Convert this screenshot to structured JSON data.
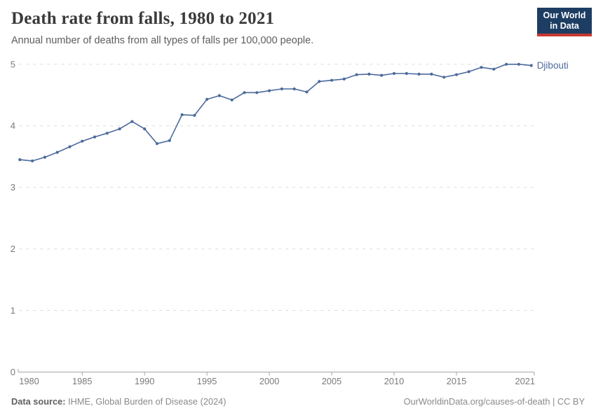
{
  "header": {
    "title": "Death rate from falls, 1980 to 2021",
    "subtitle": "Annual number of deaths from all types of falls per 100,000 people.",
    "logo": {
      "line1": "Our World",
      "line2": "in Data",
      "bg_color": "#1d3d63",
      "accent_color": "#c9382e",
      "text_color": "#ffffff"
    }
  },
  "chart_data": {
    "type": "line",
    "title": "Death rate from falls, 1980 to 2021",
    "subtitle": "Annual number of deaths from all types of falls per 100,000 people.",
    "xlim": [
      1980,
      2021
    ],
    "ylim": [
      0,
      5
    ],
    "x_ticks": [
      1980,
      1985,
      1990,
      1995,
      2000,
      2005,
      2010,
      2015,
      2021
    ],
    "y_ticks": [
      0,
      1,
      2,
      3,
      4,
      5
    ],
    "grid": "horizontal-dashed",
    "legend_position": "end-of-line-label",
    "styles": {
      "line_color": "#4C6A9C",
      "grid_color": "#dcdcdc",
      "axis_color": "#a5a5a5",
      "tick_label_color": "#7a7a7a"
    },
    "series": [
      {
        "name": "Djibouti",
        "color": "#4C6A9C",
        "x": [
          1980,
          1981,
          1982,
          1983,
          1984,
          1985,
          1986,
          1987,
          1988,
          1989,
          1990,
          1991,
          1992,
          1993,
          1994,
          1995,
          1996,
          1997,
          1998,
          1999,
          2000,
          2001,
          2002,
          2003,
          2004,
          2005,
          2006,
          2007,
          2008,
          2009,
          2010,
          2011,
          2012,
          2013,
          2014,
          2015,
          2016,
          2017,
          2018,
          2019,
          2020,
          2021
        ],
        "values": [
          3.45,
          3.43,
          3.49,
          3.57,
          3.66,
          3.75,
          3.82,
          3.88,
          3.95,
          4.07,
          3.95,
          3.71,
          3.76,
          4.18,
          4.17,
          4.43,
          4.49,
          4.42,
          4.54,
          4.54,
          4.57,
          4.6,
          4.6,
          4.55,
          4.72,
          4.74,
          4.76,
          4.83,
          4.84,
          4.82,
          4.85,
          4.85,
          4.84,
          4.84,
          4.79,
          4.83,
          4.88,
          4.95,
          4.92,
          5.0,
          5.0,
          4.98
        ]
      }
    ]
  },
  "footer": {
    "datasource_label": "Data source:",
    "datasource_value": " IHME, Global Burden of Disease (2024)",
    "credit": "OurWorldinData.org/causes-of-death | CC BY"
  }
}
